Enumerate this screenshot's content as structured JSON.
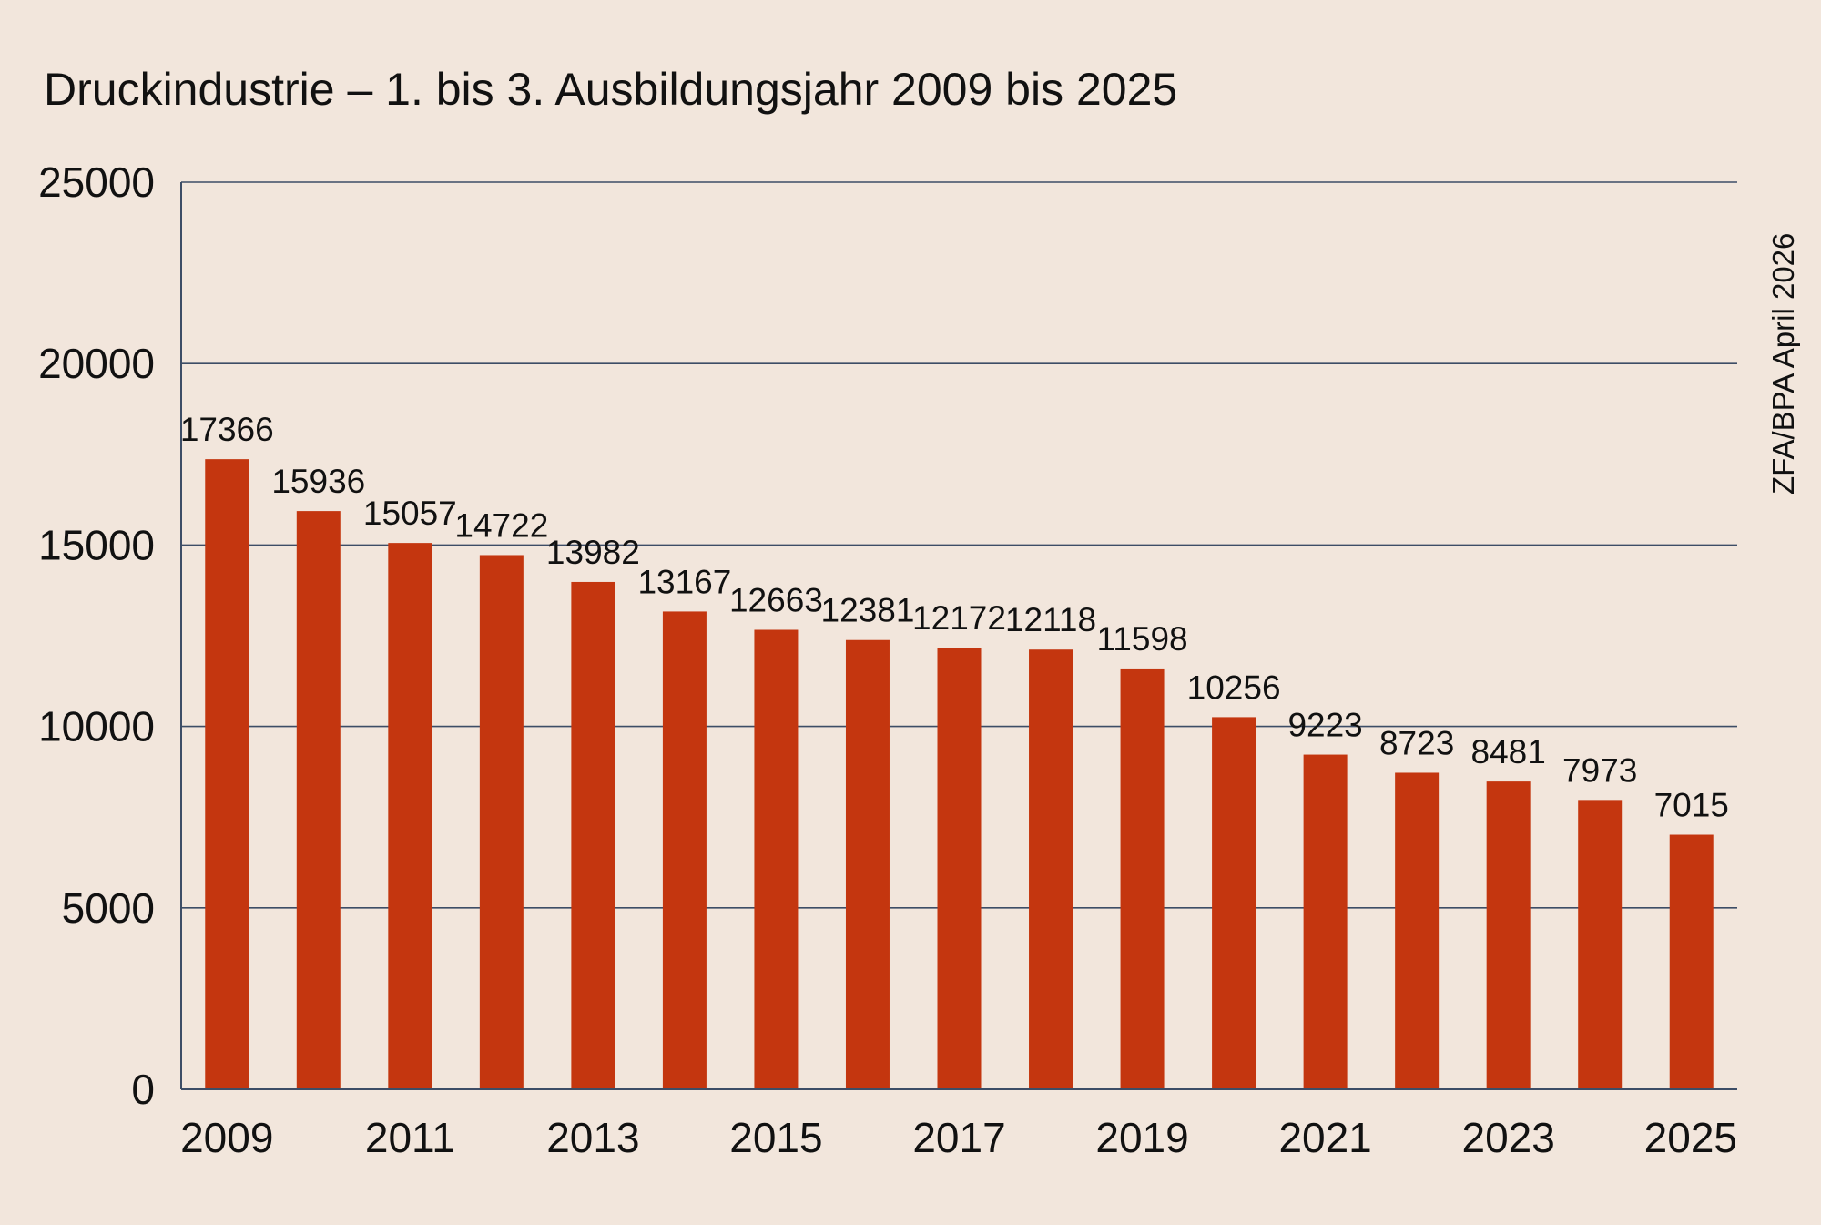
{
  "chart_data": {
    "type": "bar",
    "title": "Druckindustrie – 1. bis 3. Ausbildungsjahr 2009 bis 2025",
    "source": "ZFA/BPA April 2026",
    "xlabel": "",
    "ylabel": "",
    "ylim": [
      0,
      25000
    ],
    "yticks": [
      "0",
      "5000",
      "10000",
      "15000",
      "20000",
      "25000"
    ],
    "xtick_labels": [
      "2009",
      "2011",
      "2013",
      "2015",
      "2017",
      "2019",
      "2021",
      "2023",
      "2025"
    ],
    "grid": true,
    "bar_color": "#c4360f",
    "categories": [
      "2009",
      "2010",
      "2011",
      "2012",
      "2013",
      "2014",
      "2015",
      "2016",
      "2017",
      "2018",
      "2019",
      "2020",
      "2021",
      "2022",
      "2023",
      "2024",
      "2025"
    ],
    "values": [
      17366,
      15936,
      15057,
      14722,
      13982,
      13167,
      12663,
      12381,
      12172,
      12118,
      11598,
      10256,
      9223,
      8723,
      8481,
      7973,
      7015
    ]
  }
}
